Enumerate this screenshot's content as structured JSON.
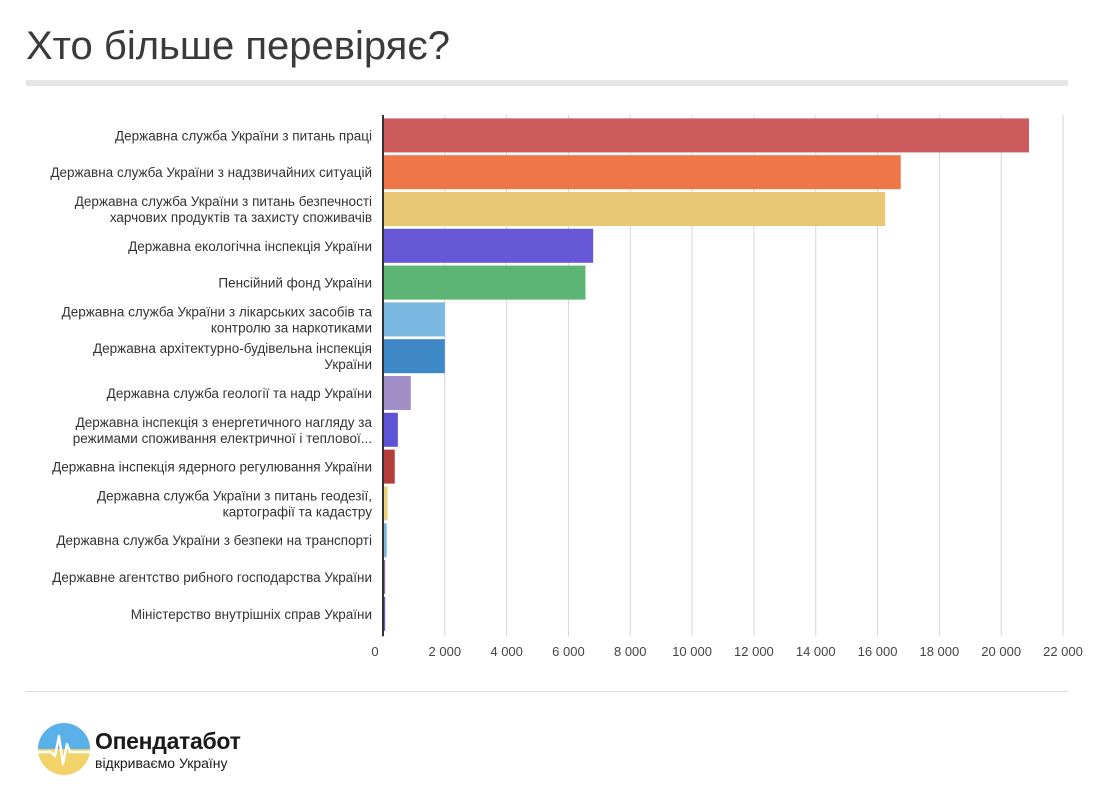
{
  "page": {
    "title": "Хто більше перевіряє?"
  },
  "chart_data": {
    "type": "bar",
    "orientation": "horizontal",
    "title": "Хто більше перевіряє?",
    "xlim": [
      0,
      22000
    ],
    "ticks": [
      0,
      2000,
      4000,
      6000,
      8000,
      10000,
      12000,
      14000,
      16000,
      18000,
      20000,
      22000
    ],
    "tick_labels": [
      "0",
      "2 000",
      "4 000",
      "6 000",
      "8 000",
      "10 000",
      "12 000",
      "14 000",
      "16 000",
      "18 000",
      "20 000",
      "22 000"
    ],
    "grid": true,
    "bars": [
      {
        "label": [
          "Державна служба України з питань праці"
        ],
        "value": 20900,
        "color": "#cd5a5c"
      },
      {
        "label": [
          "Державна служба України з надзвичайних ситуацій"
        ],
        "value": 16750,
        "color": "#ee7648"
      },
      {
        "label": [
          "Державна служба України з питань безпечності",
          "харчових продуктів та захисту споживачів"
        ],
        "value": 16250,
        "color": "#e8c874"
      },
      {
        "label": [
          "Державна екологічна інспекція України"
        ],
        "value": 6800,
        "color": "#6658d6"
      },
      {
        "label": [
          "Пенсійний фонд України"
        ],
        "value": 6550,
        "color": "#5cb574"
      },
      {
        "label": [
          "Державна служба України з лікарських засобів та",
          "контролю за наркотиками"
        ],
        "value": 2000,
        "color": "#7ab8e2"
      },
      {
        "label": [
          "Державна архітектурно-будівельна інспекція",
          "України"
        ],
        "value": 2000,
        "color": "#3e88c8"
      },
      {
        "label": [
          "Державна служба геології та надр України"
        ],
        "value": 900,
        "color": "#a38fc8"
      },
      {
        "label": [
          "Державна інспекція з енергетичного нагляду за",
          "режимами споживання електричної і теплової..."
        ],
        "value": 480,
        "color": "#5d53d6"
      },
      {
        "label": [
          "Державна інспекція ядерного регулювання України"
        ],
        "value": 380,
        "color": "#b23d3a"
      },
      {
        "label": [
          "Державна служба України з питань геодезії,",
          "картографії та кадастру"
        ],
        "value": 150,
        "color": "#e8d27e"
      },
      {
        "label": [
          "Державна служба України з безпеки на транспорті"
        ],
        "value": 120,
        "color": "#7ab8e2"
      },
      {
        "label": [
          "Державне агентство рибного господарства України"
        ],
        "value": 70,
        "color": "#8a6f9a"
      },
      {
        "label": [
          "Міністерство внутрішніх справ України"
        ],
        "value": 70,
        "color": "#6658d6"
      }
    ]
  },
  "footer": {
    "brand_name": "Опендатабот",
    "tagline": "відкриваємо Україну",
    "logo_colors": {
      "top": "#5ab0e8",
      "bottom": "#f2d36a",
      "pulse": "#ffffff"
    }
  }
}
